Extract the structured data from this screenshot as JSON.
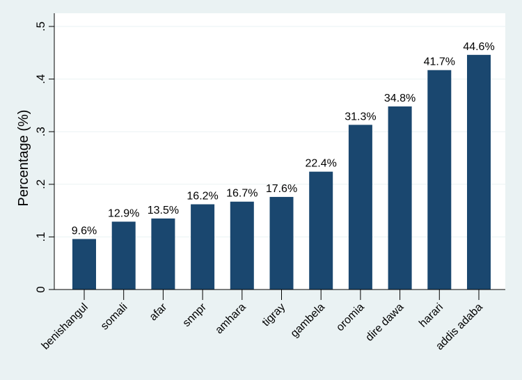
{
  "chart_data": {
    "type": "bar",
    "title": "",
    "xlabel": "",
    "ylabel": "Percentage (%)",
    "ylim": [
      0,
      0.5
    ],
    "yticks": [
      0,
      0.1,
      0.2,
      0.3,
      0.4,
      0.5
    ],
    "ytick_labels": [
      "0",
      ".1",
      ".2",
      ".3",
      ".4",
      ".5"
    ],
    "grid": true,
    "categories": [
      "benishangul",
      "somali",
      "afar",
      "snnpr",
      "amhara",
      "tigray",
      "gambela",
      "oromia",
      "dire dawa",
      "harari",
      "addis adaba"
    ],
    "values": [
      0.096,
      0.129,
      0.135,
      0.162,
      0.167,
      0.176,
      0.224,
      0.313,
      0.348,
      0.417,
      0.446
    ],
    "data_labels": [
      "9.6%",
      "12.9%",
      "13.5%",
      "16.2%",
      "16.7%",
      "17.6%",
      "22.4%",
      "31.3%",
      "34.8%",
      "41.7%",
      "44.6%"
    ],
    "colors": {
      "bar": "#1a476f",
      "background": "#eaf2f3",
      "plot": "#ffffff",
      "grid": "#eaf2f3"
    }
  }
}
